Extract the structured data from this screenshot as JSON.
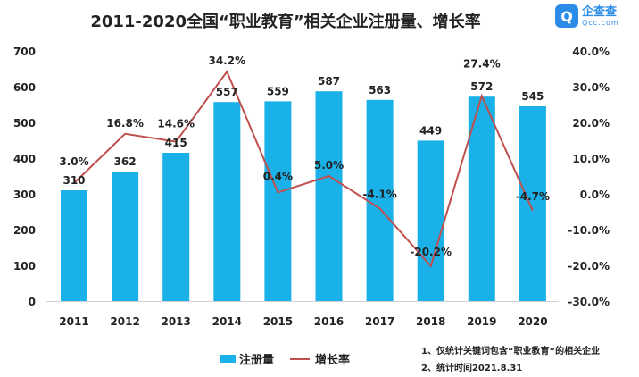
{
  "title": "2011-2020全国“职业教育”相关企业注册量、增长率",
  "logo": {
    "name": "企查查",
    "domain": "Qcc.com"
  },
  "notes": [
    "1、仅统计关键词包含“职业教育”的相关企业",
    "2、统计时间2021.8.31"
  ],
  "chart_data": {
    "type": "bar+line",
    "title": "2011-2020全国“职业教育”相关企业注册量、增长率",
    "categories": [
      "2011",
      "2012",
      "2013",
      "2014",
      "2015",
      "2016",
      "2017",
      "2018",
      "2019",
      "2020"
    ],
    "series": [
      {
        "name": "注册量",
        "type": "bar",
        "axis": "left",
        "color": "#1ab0e8",
        "values": [
          310,
          362,
          415,
          557,
          559,
          587,
          563,
          449,
          572,
          545
        ],
        "labels": [
          "310",
          "362",
          "415",
          "557",
          "559",
          "587",
          "563",
          "449",
          "572",
          "545"
        ]
      },
      {
        "name": "增长率",
        "type": "line",
        "axis": "right",
        "color": "#c0504d",
        "values": [
          3.0,
          16.8,
          14.6,
          34.2,
          0.4,
          5.0,
          -4.1,
          -20.2,
          27.4,
          -4.7
        ],
        "labels": [
          "3.0%",
          "16.8%",
          "14.6%",
          "34.2%",
          "0.4%",
          "5.0%",
          "-4.1%",
          "-20.2%",
          "27.4%",
          "-4.7%"
        ]
      }
    ],
    "left_axis": {
      "range": [
        0,
        700
      ],
      "ticks": [
        "0",
        "100",
        "200",
        "300",
        "400",
        "500",
        "600",
        "700"
      ]
    },
    "right_axis": {
      "range": [
        -30,
        40
      ],
      "ticks": [
        "-30.0%",
        "-20.0%",
        "-10.0%",
        "0.0%",
        "10.0%",
        "20.0%",
        "30.0%",
        "40.0%"
      ]
    },
    "grid": false,
    "legend": "bottom"
  }
}
